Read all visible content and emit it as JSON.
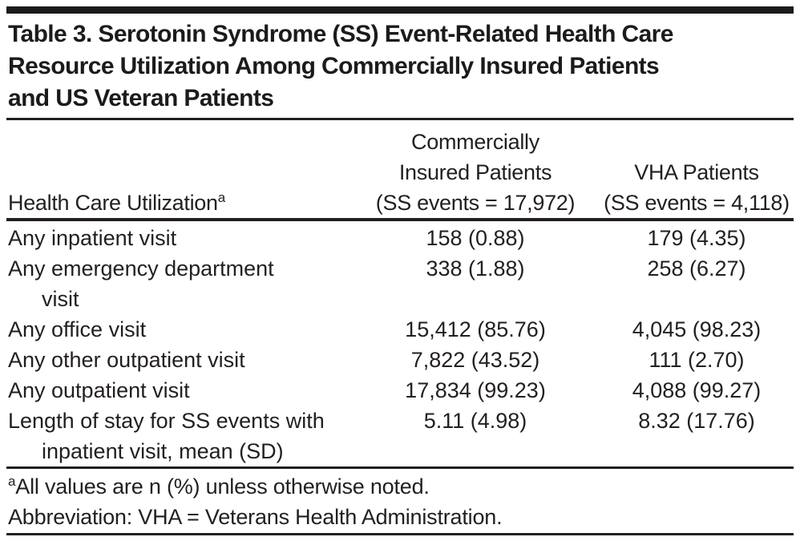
{
  "title_lines": [
    "Table 3. Serotonin Syndrome (SS) Event-Related Health Care",
    "Resource Utilization Among Commercially Insured Patients",
    "and US Veteran Patients"
  ],
  "header": {
    "col1": {
      "text": "Health Care Utilization",
      "superscript": "a"
    },
    "col2_lines": [
      "Commercially",
      "Insured Patients",
      "(SS events = 17,972)"
    ],
    "col3_lines": [
      "VHA Patients",
      "(SS events = 4,118)"
    ]
  },
  "rows": [
    {
      "line1": "Any inpatient visit",
      "line2": "",
      "commercial": "158 (0.88)",
      "vha": "179 (4.35)"
    },
    {
      "line1": "Any emergency department",
      "line2": "visit",
      "commercial": "338 (1.88)",
      "vha": "258 (6.27)"
    },
    {
      "line1": "Any office visit",
      "line2": "",
      "commercial": "15,412 (85.76)",
      "vha": "4,045 (98.23)"
    },
    {
      "line1": "Any other outpatient visit",
      "line2": "",
      "commercial": "7,822 (43.52)",
      "vha": "111 (2.70)"
    },
    {
      "line1": "Any outpatient visit",
      "line2": "",
      "commercial": "17,834 (99.23)",
      "vha": "4,088 (99.27)"
    },
    {
      "line1": "Length of stay for SS events with",
      "line2": "inpatient visit, mean (SD)",
      "commercial": "5.11 (4.98)",
      "vha": "8.32 (17.76)"
    }
  ],
  "footnotes": [
    {
      "superscript": "a",
      "text": "All values are n (%) unless otherwise noted."
    },
    {
      "superscript": "",
      "text": "Abbreviation: VHA = Veterans Health Administration."
    }
  ],
  "colors": {
    "text": "#231f20",
    "rule": "#231f20",
    "background": "#ffffff"
  }
}
